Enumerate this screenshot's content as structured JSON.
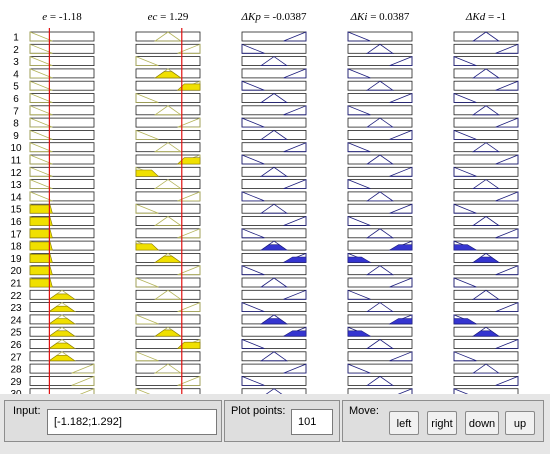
{
  "columns": [
    {
      "label": "e",
      "value": "= -1.18",
      "label_style": "italic"
    },
    {
      "label": "ec",
      "value": "= 1.29",
      "label_style": "italic"
    },
    {
      "label": "ΔKp",
      "value": "= -0.0387",
      "label_style": "italic"
    },
    {
      "label": "ΔKi",
      "value": "= 0.0387",
      "label_style": "italic"
    },
    {
      "label": "ΔKd",
      "value": "= -1",
      "label_style": "italic"
    }
  ],
  "input_marker_values": [
    -1.182,
    1.292
  ],
  "rows": [
    "1",
    "2",
    "3",
    "4",
    "5",
    "6",
    "7",
    "8",
    "9",
    "10",
    "11",
    "12",
    "13",
    "14",
    "15",
    "16",
    "17",
    "18",
    "19",
    "20",
    "21",
    "22",
    "23",
    "24",
    "25",
    "26",
    "27",
    "28",
    "29",
    "30"
  ],
  "colors": {
    "input_fill": "#f0e000",
    "output_fill": "#3535d0",
    "input_outline": "#b4b45a",
    "output_outline": "#1e1e7e",
    "marker": "#e01010"
  },
  "controls": {
    "input_label": "Input:",
    "input_value": "[-1.182;1.292]",
    "plot_points_label": "Plot points:",
    "plot_points_value": "101",
    "move_label": "Move:",
    "buttons": [
      "left",
      "right",
      "down",
      "up"
    ]
  },
  "rule_cells": [
    [
      "lo",
      0
    ],
    [
      "lo",
      0
    ],
    [
      "lo",
      0
    ],
    [
      "lo",
      0
    ],
    [
      "lo",
      0
    ],
    [
      "lo",
      0
    ],
    [
      "lo",
      0
    ],
    [
      "lo",
      0
    ],
    [
      "lo",
      0
    ],
    [
      "lo",
      0
    ],
    [
      "lo",
      0
    ],
    [
      "lo",
      0
    ],
    [
      "lo",
      0
    ],
    [
      "lo",
      0
    ],
    [
      "lo",
      0.9
    ],
    [
      "lo",
      0.9
    ],
    [
      "lo",
      0.9
    ],
    [
      "lo",
      0.9
    ],
    [
      "lo",
      0.9
    ],
    [
      "lo",
      0.9
    ],
    [
      "lo",
      0.9
    ],
    [
      "mid",
      0.6
    ],
    [
      "mid",
      0.6
    ],
    [
      "mid",
      0.6
    ],
    [
      "mid",
      0.6
    ],
    [
      "mid",
      0.6
    ],
    [
      "mid",
      0.6
    ],
    [
      "hi",
      0
    ],
    [
      "hi",
      0
    ],
    [
      "hi",
      0
    ]
  ]
}
